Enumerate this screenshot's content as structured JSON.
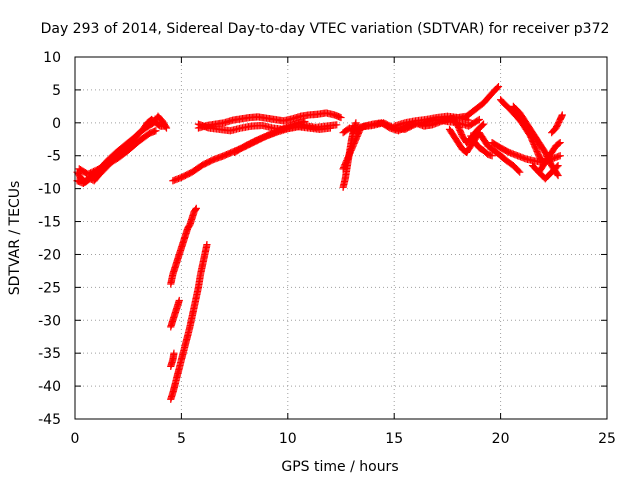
{
  "chart_data": {
    "type": "scatter",
    "title": "Day 293 of 2014, Sidereal Day-to-day VTEC variation (SDTVAR) for receiver p372",
    "xlabel": "GPS time / hours",
    "ylabel": "SDTVAR / TECUs",
    "xlim": [
      0,
      25
    ],
    "ylim": [
      -45,
      10
    ],
    "xticks": [
      0,
      5,
      10,
      15,
      20,
      25
    ],
    "yticks": [
      10,
      5,
      0,
      -5,
      -10,
      -15,
      -20,
      -25,
      -30,
      -35,
      -40,
      -45
    ],
    "grid": true,
    "legend": "none",
    "marker": "plus",
    "series_color": "#ff0000",
    "segments": [
      {
        "x": [
          0.1,
          0.3,
          0.5,
          0.7,
          0.9,
          1.1,
          1.4,
          1.7,
          2.0,
          2.3,
          2.6,
          2.9,
          3.2,
          3.4,
          3.6,
          3.8,
          4.0,
          4.2
        ],
        "y": [
          -7.5,
          -8.5,
          -9.0,
          -8.5,
          -8.8,
          -8.0,
          -7.0,
          -6.0,
          -5.0,
          -4.0,
          -3.0,
          -2.0,
          -1.0,
          0.0,
          0.5,
          0.0,
          -0.5,
          -0.5
        ]
      },
      {
        "x": [
          0.1,
          0.4,
          0.7,
          1.0,
          1.3,
          1.6,
          1.9,
          2.2,
          2.5,
          2.8,
          3.1,
          3.4,
          3.7,
          3.9,
          4.1,
          4.3
        ],
        "y": [
          -8.8,
          -9.2,
          -8.2,
          -7.6,
          -6.5,
          -5.5,
          -4.6,
          -3.8,
          -3.0,
          -2.2,
          -1.3,
          -0.6,
          0.0,
          1.0,
          0.3,
          -0.8
        ]
      },
      {
        "x": [
          0.2,
          0.6,
          1.0,
          1.5,
          2.0,
          2.5,
          3.0,
          3.5,
          3.8
        ],
        "y": [
          -7.0,
          -7.8,
          -7.2,
          -6.4,
          -5.4,
          -4.2,
          -2.8,
          -1.6,
          -1.2
        ]
      },
      {
        "x": [
          4.5,
          4.6,
          4.7,
          4.8,
          4.9,
          5.0,
          5.1,
          5.2,
          5.3,
          5.4,
          5.5,
          5.6,
          5.7
        ],
        "y": [
          -24.5,
          -23.0,
          -22.0,
          -21.0,
          -20.0,
          -19.0,
          -18.0,
          -17.0,
          -16.0,
          -15.5,
          -14.5,
          -13.5,
          -13.0
        ]
      },
      {
        "x": [
          4.5,
          4.6,
          4.7,
          4.8,
          4.9
        ],
        "y": [
          -31.0,
          -30.0,
          -29.0,
          -28.0,
          -27.0
        ]
      },
      {
        "x": [
          4.5,
          4.6,
          4.65
        ],
        "y": [
          -37.0,
          -36.0,
          -35.0
        ]
      },
      {
        "x": [
          4.5,
          4.6,
          4.7,
          4.8,
          4.9,
          5.0,
          5.1,
          5.2,
          5.3,
          5.4,
          5.5,
          5.6,
          5.7,
          5.8,
          5.9,
          6.0,
          6.1,
          6.2
        ],
        "y": [
          -42.0,
          -41.0,
          -39.8,
          -38.5,
          -37.3,
          -36.0,
          -34.8,
          -33.5,
          -32.3,
          -31.0,
          -29.5,
          -28.0,
          -26.5,
          -25.0,
          -23.0,
          -21.5,
          -20.0,
          -18.5
        ]
      },
      {
        "x": [
          4.6,
          5.0,
          5.5,
          6.0,
          6.5,
          7.0,
          7.5,
          8.0,
          8.5,
          9.0,
          9.5,
          10.0,
          10.5,
          10.8
        ],
        "y": [
          -8.8,
          -8.3,
          -7.5,
          -6.4,
          -5.6,
          -5.0,
          -4.3,
          -3.6,
          -2.8,
          -2.0,
          -1.3,
          -0.6,
          0.0,
          0.2
        ]
      },
      {
        "x": [
          7.5,
          8.0,
          8.5,
          9.0,
          9.5,
          10.0,
          10.5,
          11.0,
          11.5,
          12.0
        ],
        "y": [
          -4.5,
          -3.5,
          -2.7,
          -2.0,
          -1.4,
          -0.9,
          -0.6,
          -0.8,
          -1.0,
          -0.8
        ]
      },
      {
        "x": [
          5.8,
          6.2,
          6.6,
          7.0,
          7.4,
          7.8,
          8.2,
          8.6,
          9.0,
          9.4,
          9.8,
          10.2,
          10.6,
          11.0,
          11.4,
          11.8,
          12.2,
          12.5
        ],
        "y": [
          -0.8,
          -0.4,
          -0.2,
          0.0,
          0.4,
          0.6,
          0.8,
          0.9,
          0.7,
          0.5,
          0.3,
          0.6,
          1.0,
          1.2,
          1.3,
          1.5,
          1.2,
          0.8
        ]
      },
      {
        "x": [
          5.8,
          6.3,
          6.8,
          7.3,
          7.8,
          8.3,
          8.8,
          9.3,
          9.8,
          10.3,
          10.8,
          11.3,
          11.8,
          12.3
        ],
        "y": [
          -0.2,
          -0.8,
          -1.0,
          -1.2,
          -0.8,
          -0.5,
          -0.4,
          -0.8,
          -1.0,
          -0.6,
          -0.4,
          -0.7,
          -0.5,
          -0.3
        ]
      },
      {
        "x": [
          12.6,
          12.7,
          12.8,
          12.9,
          13.0,
          13.1,
          13.2
        ],
        "y": [
          -9.8,
          -8.5,
          -6.5,
          -4.5,
          -2.5,
          -1.0,
          0.0
        ]
      },
      {
        "x": [
          12.6,
          12.8,
          13.0,
          13.2,
          13.4
        ],
        "y": [
          -7.0,
          -5.5,
          -4.0,
          -2.5,
          -1.0
        ]
      },
      {
        "x": [
          12.6,
          12.9,
          13.2,
          13.6,
          14.0,
          14.4,
          14.8,
          15.2,
          15.6,
          16.0,
          16.4,
          16.8,
          17.2,
          17.6,
          18.0,
          18.4,
          18.8,
          19.2,
          19.6,
          19.9
        ],
        "y": [
          -1.5,
          -0.8,
          -1.2,
          -0.5,
          -0.2,
          0.0,
          -0.8,
          -1.2,
          -0.6,
          0.0,
          -0.5,
          -0.3,
          0.2,
          0.6,
          0.8,
          1.0,
          2.0,
          3.0,
          4.5,
          5.5
        ]
      },
      {
        "x": [
          13.0,
          13.5,
          14.0,
          14.5,
          15.0,
          15.5,
          16.0,
          16.5,
          17.0,
          17.5,
          18.0,
          18.5,
          19.0
        ],
        "y": [
          -1.0,
          -0.6,
          -0.4,
          0.0,
          -0.8,
          -1.0,
          -0.2,
          0.2,
          0.5,
          0.2,
          0.0,
          -0.5,
          0.5
        ]
      },
      {
        "x": [
          15.0,
          15.5,
          16.0,
          16.5,
          17.0,
          17.5,
          18.0,
          18.5
        ],
        "y": [
          -0.5,
          0.0,
          0.3,
          0.5,
          0.8,
          1.0,
          0.8,
          0.4
        ]
      },
      {
        "x": [
          17.6,
          17.8,
          18.0,
          18.2,
          18.4,
          18.6,
          18.8,
          19.0,
          19.2,
          19.4,
          19.6,
          19.8,
          20.0,
          20.2
        ],
        "y": [
          -1.0,
          -2.0,
          -3.0,
          -4.0,
          -4.5,
          -3.5,
          -2.5,
          -1.5,
          -2.5,
          -3.5,
          -4.0,
          -4.5,
          -5.0,
          -5.5
        ]
      },
      {
        "x": [
          17.8,
          18.0,
          18.2,
          18.4,
          18.6,
          18.8,
          19.0,
          19.2
        ],
        "y": [
          0.5,
          -0.5,
          -2.0,
          -3.0,
          -2.5,
          -1.5,
          -0.8,
          -0.2
        ]
      },
      {
        "x": [
          18.6,
          18.8,
          19.0,
          19.2,
          19.4,
          19.6
        ],
        "y": [
          -2.0,
          -3.0,
          -3.8,
          -4.2,
          -4.8,
          -5.0
        ]
      },
      {
        "x": [
          19.6,
          20.0,
          20.4,
          20.8,
          21.2,
          21.6,
          22.0,
          22.4,
          22.8
        ],
        "y": [
          -3.0,
          -3.8,
          -4.5,
          -5.0,
          -5.5,
          -5.8,
          -6.0,
          -5.5,
          -5.0
        ]
      },
      {
        "x": [
          20.0,
          20.2,
          20.4,
          20.6,
          20.8,
          21.0,
          21.2,
          21.4,
          21.6,
          21.8,
          22.0
        ],
        "y": [
          3.5,
          2.8,
          2.2,
          1.5,
          0.8,
          0.0,
          -1.0,
          -2.0,
          -3.5,
          -5.0,
          -6.0
        ]
      },
      {
        "x": [
          20.0,
          20.3,
          20.6,
          20.9
        ],
        "y": [
          -5.0,
          -5.8,
          -6.5,
          -7.5
        ]
      },
      {
        "x": [
          20.6,
          20.9,
          21.2,
          21.5,
          21.8,
          22.1,
          22.4,
          22.7
        ],
        "y": [
          2.5,
          1.5,
          0.0,
          -1.5,
          -3.0,
          -4.5,
          -6.5,
          -8.0
        ]
      },
      {
        "x": [
          21.5,
          21.8,
          22.1,
          22.4,
          22.7
        ],
        "y": [
          -6.5,
          -7.5,
          -8.5,
          -7.5,
          -6.5
        ]
      },
      {
        "x": [
          21.8,
          22.0,
          22.2,
          22.4,
          22.6,
          22.8
        ],
        "y": [
          -7.5,
          -6.5,
          -5.5,
          -4.5,
          -3.5,
          -3.0
        ]
      },
      {
        "x": [
          22.4,
          22.6,
          22.8,
          22.9
        ],
        "y": [
          -1.5,
          -0.8,
          0.5,
          1.2
        ]
      }
    ]
  }
}
